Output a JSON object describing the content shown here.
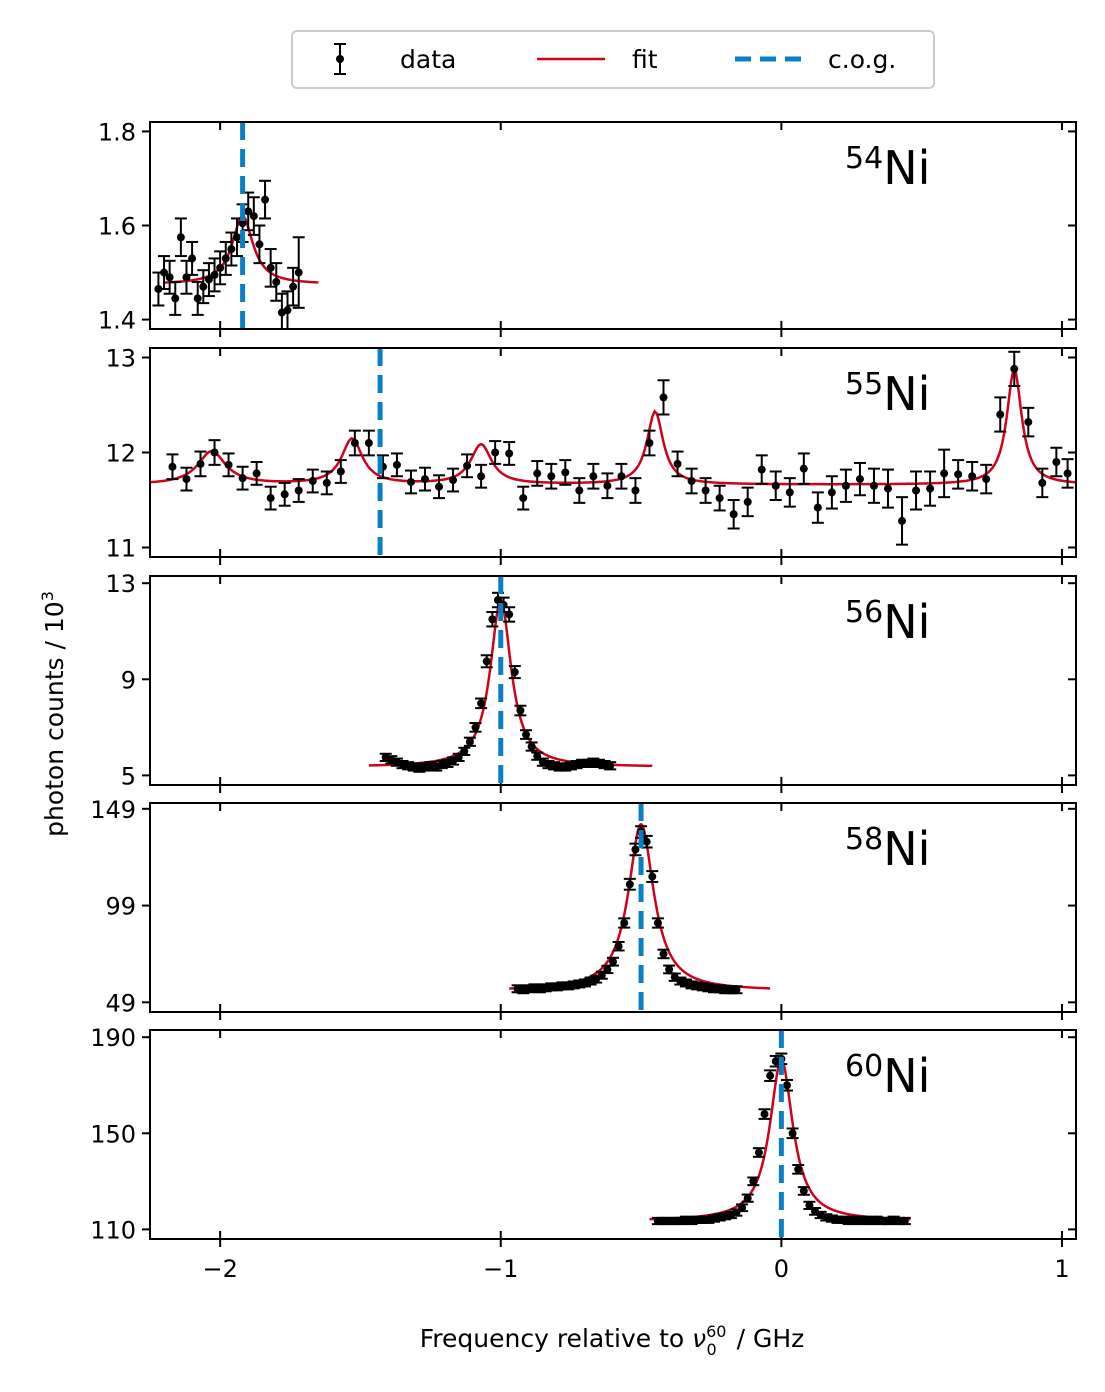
{
  "chart_data": {
    "type": "scatter",
    "xlabel": "Frequency relative to ν₀⁶⁰ / GHz",
    "ylabel": "photon counts / 10³",
    "xlim": [
      -2.25,
      1.05
    ],
    "xticks": [
      -2,
      -1,
      0,
      1
    ],
    "xtick_labels": [
      "−2",
      "−1",
      "0",
      "1"
    ],
    "legend": {
      "placement": "top-center",
      "entries": [
        {
          "label": "data",
          "style": "errorbar-marker",
          "color": "#000000"
        },
        {
          "label": "fit",
          "style": "line",
          "color": "#d0021b"
        },
        {
          "label": "c.o.g.",
          "style": "dashed",
          "color": "#0a7fc6"
        }
      ]
    },
    "panels": [
      {
        "label_sup": "54",
        "label": "Ni",
        "ylim": [
          1.38,
          1.82
        ],
        "yticks": [
          1.4,
          1.6,
          1.8
        ],
        "ytick_labels": [
          "1.4",
          "1.6",
          "1.8"
        ],
        "cog": -1.92,
        "fit": {
          "x_range": [
            -2.2,
            -1.65
          ],
          "baseline": 1.475,
          "peaks": [
            {
              "center": -1.92,
              "amp": 0.145,
              "width": 0.045
            }
          ]
        },
        "data": {
          "x": [
            -2.22,
            -2.2,
            -2.18,
            -2.16,
            -2.14,
            -2.12,
            -2.1,
            -2.08,
            -2.06,
            -2.04,
            -2.02,
            -2.0,
            -1.98,
            -1.96,
            -1.94,
            -1.92,
            -1.9,
            -1.88,
            -1.86,
            -1.84,
            -1.82,
            -1.8,
            -1.78,
            -1.76,
            -1.74,
            -1.72
          ],
          "y": [
            1.465,
            1.5,
            1.49,
            1.445,
            1.575,
            1.49,
            1.53,
            1.445,
            1.47,
            1.485,
            1.495,
            1.51,
            1.53,
            1.55,
            1.575,
            1.605,
            1.63,
            1.62,
            1.56,
            1.655,
            1.51,
            1.48,
            1.415,
            1.42,
            1.47,
            1.5
          ],
          "err": [
            0.035,
            0.035,
            0.035,
            0.035,
            0.04,
            0.035,
            0.035,
            0.035,
            0.035,
            0.035,
            0.035,
            0.035,
            0.035,
            0.035,
            0.04,
            0.04,
            0.04,
            0.04,
            0.04,
            0.04,
            0.04,
            0.04,
            0.04,
            0.04,
            0.04,
            0.075
          ]
        }
      },
      {
        "label_sup": "55",
        "label": "Ni",
        "ylim": [
          10.9,
          13.1
        ],
        "yticks": [
          11,
          12,
          13
        ],
        "ytick_labels": [
          "11",
          "12",
          "13"
        ],
        "cog": -1.43,
        "fit": {
          "x_range": [
            -2.25,
            1.05
          ],
          "baseline": 11.66,
          "peaks": [
            {
              "center": -2.03,
              "amp": 0.35,
              "width": 0.06
            },
            {
              "center": -1.53,
              "amp": 0.48,
              "width": 0.045
            },
            {
              "center": -1.07,
              "amp": 0.42,
              "width": 0.045
            },
            {
              "center": -0.45,
              "amp": 0.77,
              "width": 0.035
            },
            {
              "center": 0.83,
              "amp": 1.22,
              "width": 0.032
            }
          ]
        },
        "data": {
          "x": [
            -2.17,
            -2.12,
            -2.07,
            -2.02,
            -1.97,
            -1.92,
            -1.87,
            -1.82,
            -1.77,
            -1.72,
            -1.67,
            -1.62,
            -1.57,
            -1.52,
            -1.47,
            -1.42,
            -1.37,
            -1.32,
            -1.27,
            -1.22,
            -1.17,
            -1.12,
            -1.07,
            -1.02,
            -0.97,
            -0.92,
            -0.87,
            -0.82,
            -0.77,
            -0.72,
            -0.67,
            -0.62,
            -0.57,
            -0.52,
            -0.47,
            -0.42,
            -0.37,
            -0.32,
            -0.27,
            -0.22,
            -0.17,
            -0.12,
            -0.07,
            -0.02,
            0.03,
            0.08,
            0.13,
            0.18,
            0.23,
            0.28,
            0.33,
            0.38,
            0.43,
            0.48,
            0.53,
            0.58,
            0.63,
            0.68,
            0.73,
            0.78,
            0.83,
            0.88,
            0.93,
            0.98,
            1.02
          ],
          "y": [
            11.85,
            11.72,
            11.88,
            12.0,
            11.87,
            11.73,
            11.78,
            11.52,
            11.56,
            11.6,
            11.7,
            11.68,
            11.8,
            12.1,
            12.1,
            11.85,
            11.87,
            11.69,
            11.72,
            11.64,
            11.71,
            11.86,
            11.75,
            12.0,
            11.99,
            11.52,
            11.78,
            11.75,
            11.79,
            11.6,
            11.75,
            11.65,
            11.75,
            11.6,
            12.1,
            12.58,
            11.88,
            11.7,
            11.6,
            11.52,
            11.35,
            11.48,
            11.82,
            11.65,
            11.58,
            11.83,
            11.42,
            11.58,
            11.65,
            11.72,
            11.65,
            11.62,
            11.28,
            11.6,
            11.62,
            11.78,
            11.77,
            11.75,
            11.72,
            12.4,
            12.88,
            12.32,
            11.68,
            11.9,
            11.78
          ],
          "err": [
            0.13,
            0.12,
            0.13,
            0.13,
            0.12,
            0.12,
            0.12,
            0.12,
            0.12,
            0.12,
            0.12,
            0.12,
            0.12,
            0.13,
            0.13,
            0.12,
            0.12,
            0.12,
            0.12,
            0.12,
            0.12,
            0.12,
            0.12,
            0.12,
            0.12,
            0.12,
            0.13,
            0.13,
            0.13,
            0.13,
            0.13,
            0.13,
            0.13,
            0.13,
            0.13,
            0.18,
            0.13,
            0.13,
            0.13,
            0.13,
            0.15,
            0.15,
            0.15,
            0.15,
            0.15,
            0.16,
            0.16,
            0.17,
            0.17,
            0.17,
            0.18,
            0.2,
            0.25,
            0.2,
            0.18,
            0.25,
            0.15,
            0.15,
            0.15,
            0.18,
            0.18,
            0.15,
            0.15,
            0.15,
            0.15
          ]
        }
      },
      {
        "label_sup": "56",
        "label": "Ni",
        "ylim": [
          4.6,
          13.3
        ],
        "yticks": [
          5,
          9,
          13
        ],
        "ytick_labels": [
          "5",
          "9",
          "13"
        ],
        "cog": -1.0,
        "fit": {
          "x_range": [
            -1.47,
            -0.46
          ],
          "baseline": 5.35,
          "peaks": [
            {
              "center": -1.0,
              "amp": 6.95,
              "width": 0.045
            }
          ]
        },
        "data": {
          "x": [
            -1.41,
            -1.39,
            -1.37,
            -1.35,
            -1.33,
            -1.31,
            -1.29,
            -1.27,
            -1.25,
            -1.23,
            -1.21,
            -1.19,
            -1.17,
            -1.15,
            -1.13,
            -1.11,
            -1.09,
            -1.07,
            -1.05,
            -1.03,
            -1.01,
            -0.99,
            -0.97,
            -0.95,
            -0.93,
            -0.91,
            -0.89,
            -0.87,
            -0.85,
            -0.83,
            -0.81,
            -0.79,
            -0.77,
            -0.75,
            -0.73,
            -0.71,
            -0.69,
            -0.67,
            -0.65,
            -0.63,
            -0.61
          ],
          "y": [
            5.75,
            5.65,
            5.55,
            5.45,
            5.4,
            5.35,
            5.3,
            5.35,
            5.4,
            5.35,
            5.45,
            5.5,
            5.6,
            5.75,
            6.0,
            6.4,
            7.0,
            8.0,
            9.75,
            11.5,
            12.3,
            12.1,
            11.7,
            9.3,
            7.7,
            6.7,
            6.2,
            5.8,
            5.55,
            5.45,
            5.4,
            5.35,
            5.35,
            5.4,
            5.45,
            5.5,
            5.5,
            5.55,
            5.5,
            5.45,
            5.4
          ],
          "err": [
            0.15,
            0.15,
            0.15,
            0.15,
            0.15,
            0.15,
            0.15,
            0.15,
            0.15,
            0.15,
            0.15,
            0.15,
            0.15,
            0.15,
            0.15,
            0.17,
            0.18,
            0.2,
            0.25,
            0.3,
            0.3,
            0.3,
            0.3,
            0.25,
            0.2,
            0.18,
            0.17,
            0.15,
            0.15,
            0.15,
            0.15,
            0.15,
            0.15,
            0.15,
            0.15,
            0.15,
            0.15,
            0.15,
            0.15,
            0.15,
            0.15
          ]
        }
      },
      {
        "label_sup": "58",
        "label": "Ni",
        "ylim": [
          44,
          152
        ],
        "yticks": [
          49,
          99,
          149
        ],
        "ytick_labels": [
          "49",
          "99",
          "149"
        ],
        "cog": -0.5,
        "fit": {
          "x_range": [
            -0.97,
            -0.04
          ],
          "baseline": 55.0,
          "peaks": [
            {
              "center": -0.5,
              "amp": 86.0,
              "width": 0.055
            }
          ]
        },
        "data": {
          "x": [
            -0.94,
            -0.92,
            -0.9,
            -0.88,
            -0.86,
            -0.84,
            -0.82,
            -0.8,
            -0.78,
            -0.76,
            -0.74,
            -0.72,
            -0.7,
            -0.68,
            -0.66,
            -0.64,
            -0.62,
            -0.6,
            -0.58,
            -0.56,
            -0.54,
            -0.52,
            -0.5,
            -0.48,
            -0.46,
            -0.44,
            -0.42,
            -0.4,
            -0.38,
            -0.36,
            -0.34,
            -0.32,
            -0.3,
            -0.28,
            -0.26,
            -0.24,
            -0.22,
            -0.2,
            -0.18,
            -0.16
          ],
          "y": [
            56,
            55.5,
            56,
            56.5,
            56,
            56.5,
            57,
            57,
            57.5,
            57.5,
            58,
            58.5,
            59,
            60,
            61,
            63,
            66,
            70,
            78,
            90,
            110,
            128,
            137,
            132,
            114,
            90,
            74,
            66,
            62,
            60,
            59,
            58,
            57.5,
            57,
            56.5,
            56,
            56,
            55.5,
            55.5,
            55.5
          ],
          "err": [
            1.8,
            1.8,
            1.8,
            1.8,
            1.8,
            1.8,
            1.8,
            1.8,
            1.8,
            1.8,
            1.8,
            1.8,
            1.8,
            1.8,
            1.8,
            1.8,
            1.9,
            2,
            2.2,
            2.4,
            2.8,
            3,
            3,
            3,
            2.8,
            2.4,
            2.2,
            2,
            1.9,
            1.8,
            1.8,
            1.8,
            1.8,
            1.8,
            1.8,
            1.8,
            1.8,
            1.8,
            1.8,
            1.8
          ]
        }
      },
      {
        "label_sup": "60",
        "label": "Ni",
        "ylim": [
          106,
          193
        ],
        "yticks": [
          110,
          150,
          190
        ],
        "ytick_labels": [
          "110",
          "150",
          "190"
        ],
        "cog": 0.0,
        "fit": {
          "x_range": [
            -0.47,
            0.46
          ],
          "baseline": 113.5,
          "peaks": [
            {
              "center": 0.0,
              "amp": 67.0,
              "width": 0.05
            }
          ]
        },
        "data": {
          "x": [
            -0.44,
            -0.42,
            -0.4,
            -0.38,
            -0.36,
            -0.34,
            -0.32,
            -0.3,
            -0.28,
            -0.26,
            -0.24,
            -0.22,
            -0.2,
            -0.18,
            -0.16,
            -0.14,
            -0.12,
            -0.1,
            -0.08,
            -0.06,
            -0.04,
            -0.02,
            0.0,
            0.02,
            0.04,
            0.06,
            0.08,
            0.1,
            0.12,
            0.14,
            0.16,
            0.18,
            0.2,
            0.22,
            0.24,
            0.26,
            0.28,
            0.3,
            0.32,
            0.34,
            0.36,
            0.38,
            0.4,
            0.42,
            0.44
          ],
          "y": [
            113.5,
            113.5,
            113.5,
            113.5,
            113.5,
            114,
            113.5,
            114,
            114,
            114,
            114.5,
            115,
            115.5,
            116,
            117,
            119,
            123,
            130,
            142,
            158,
            174,
            180,
            181,
            170,
            150,
            135,
            126,
            120,
            117.5,
            116,
            115,
            114.5,
            114,
            114,
            113.5,
            114,
            113.5,
            114,
            113.5,
            114,
            113.5,
            113.5,
            114,
            113.5,
            113.5
          ],
          "err": [
            1.3,
            1.3,
            1.3,
            1.3,
            1.3,
            1.3,
            1.3,
            1.3,
            1.3,
            1.3,
            1.3,
            1.3,
            1.3,
            1.3,
            1.3,
            1.4,
            1.5,
            1.6,
            1.8,
            2,
            2.2,
            2.2,
            2.2,
            2.2,
            2,
            1.8,
            1.6,
            1.5,
            1.4,
            1.3,
            1.3,
            1.3,
            1.3,
            1.3,
            1.3,
            1.3,
            1.3,
            1.3,
            1.3,
            1.3,
            1.3,
            1.3,
            1.3,
            1.3,
            1.3
          ]
        }
      }
    ]
  }
}
